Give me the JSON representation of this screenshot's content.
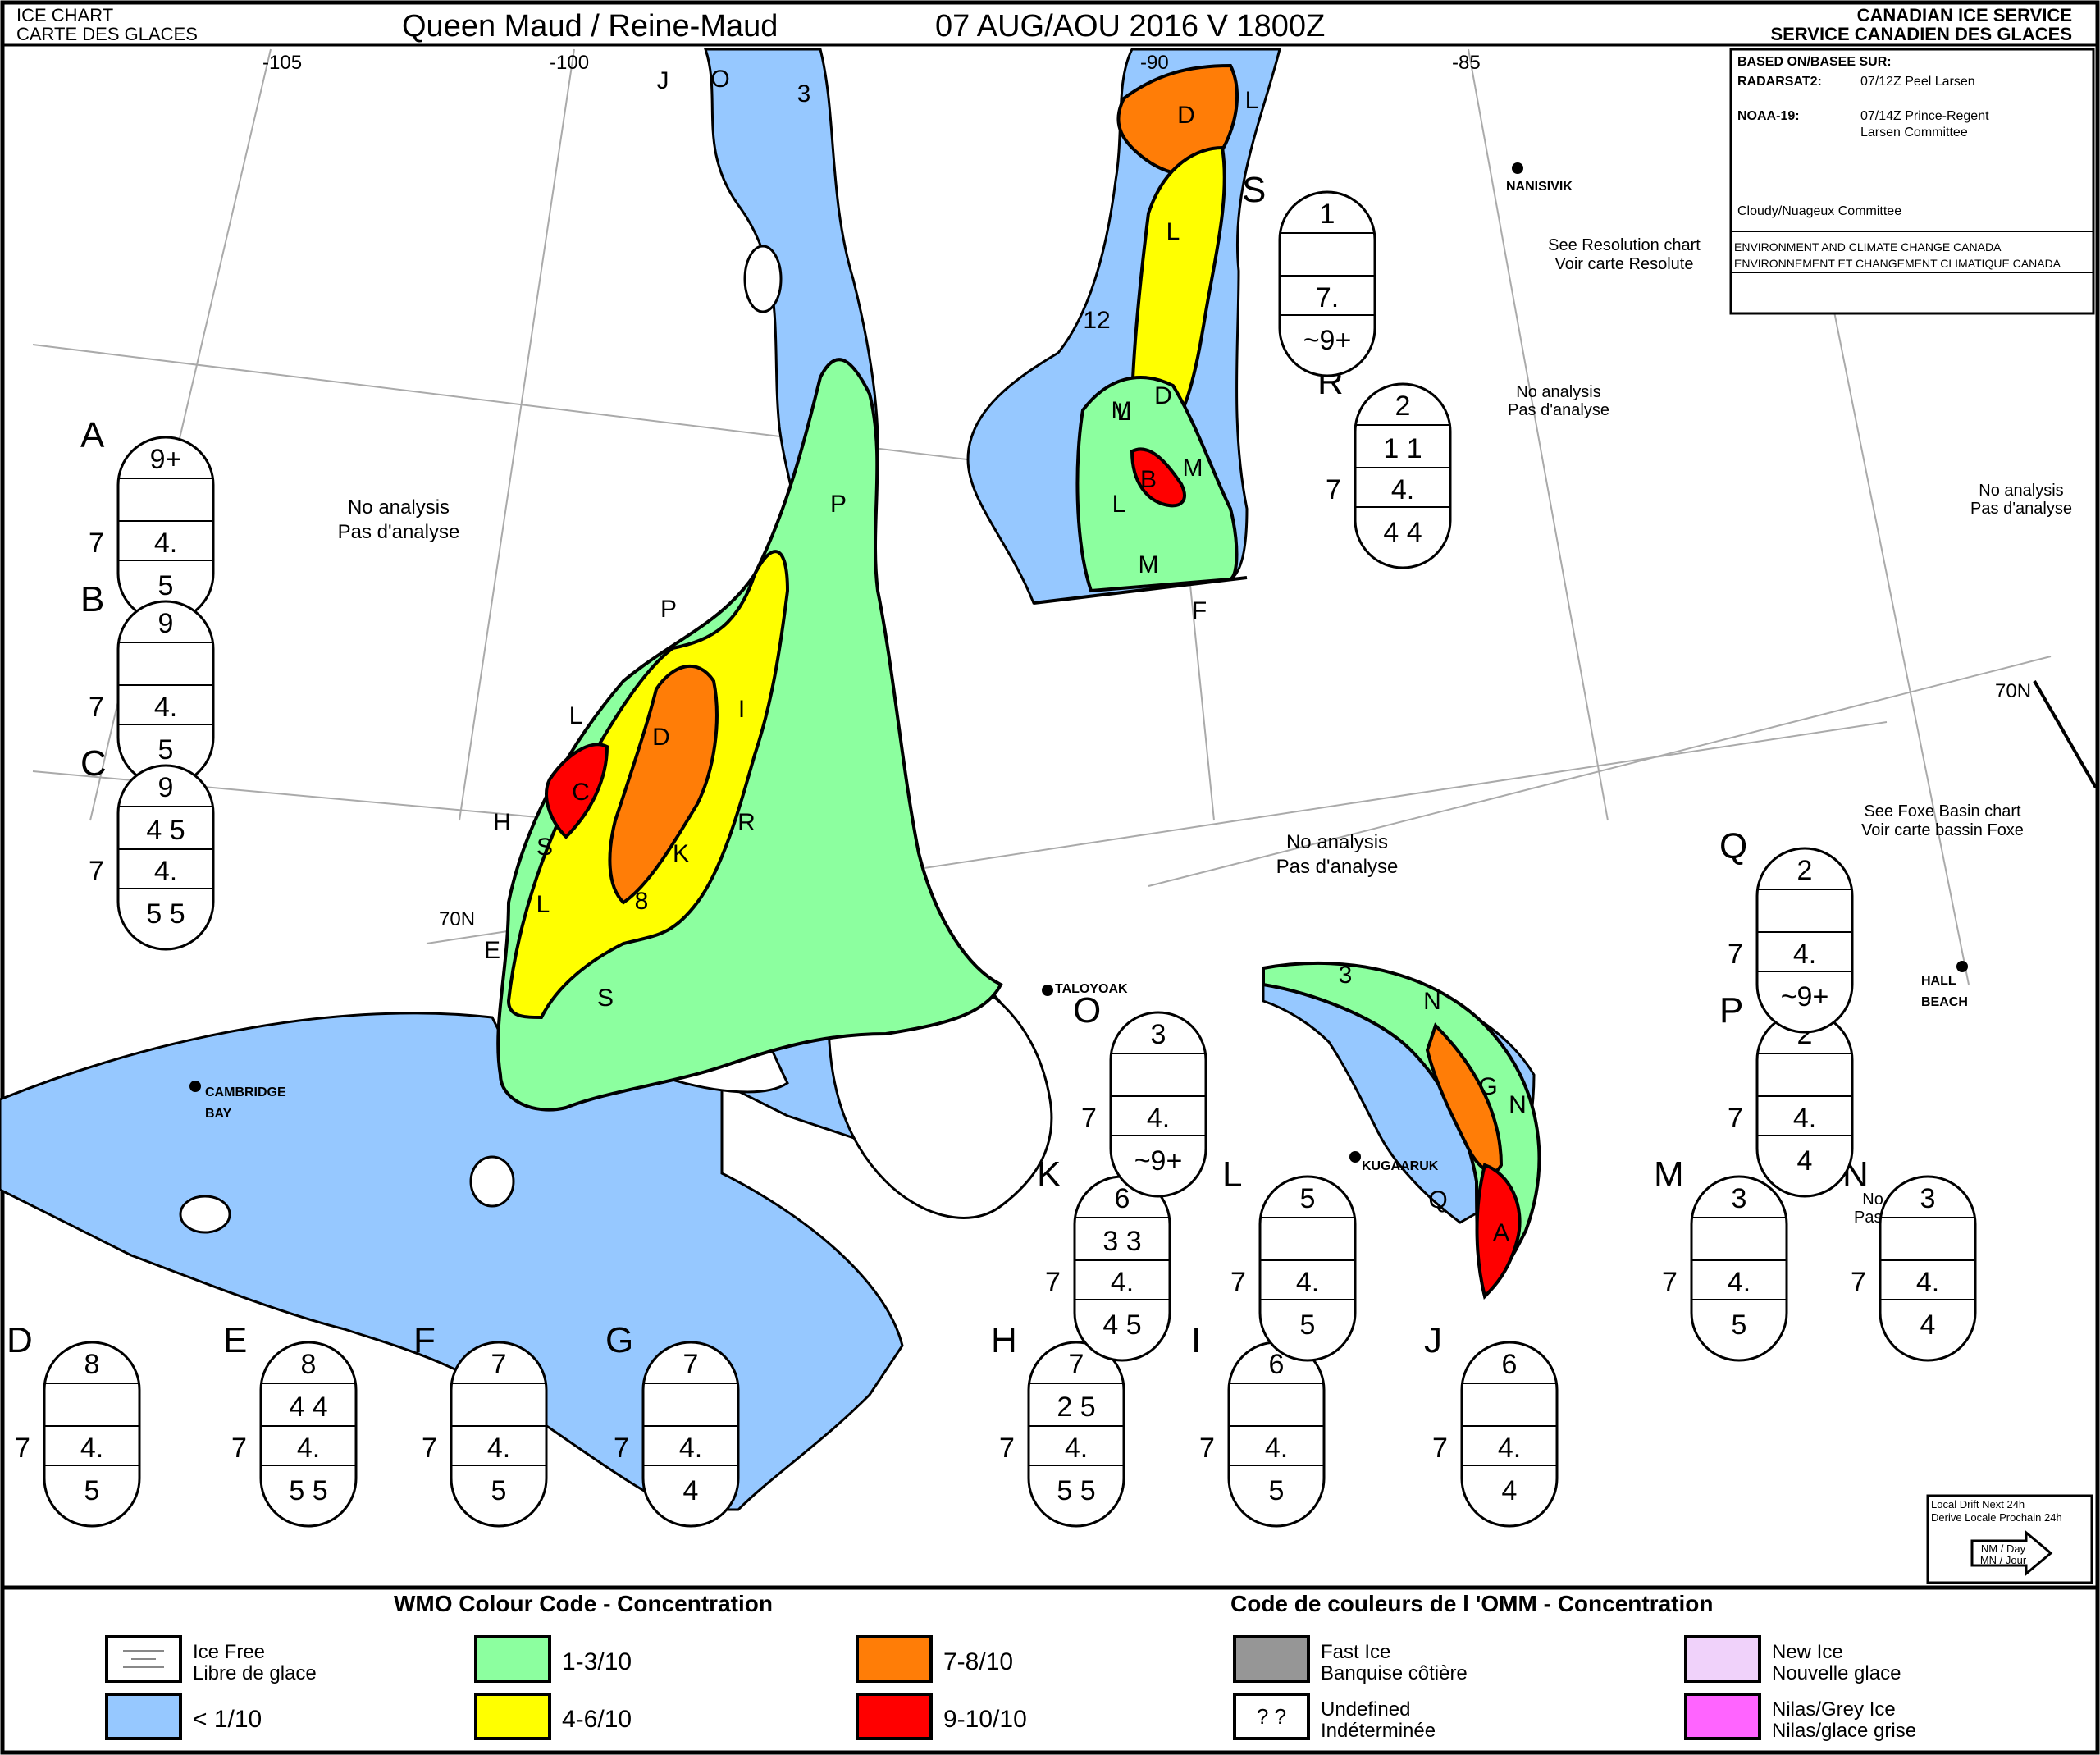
{
  "header": {
    "chart_label_en": "ICE CHART",
    "chart_label_fr": "CARTE DES GLACES",
    "title": "Queen Maud / Reine-Maud",
    "date": "07 AUG/AOU 2016  V 1800Z",
    "agency_en": "CANADIAN ICE SERVICE",
    "agency_fr": "SERVICE CANADIEN DES GLACES"
  },
  "info_box": {
    "based_on": "BASED ON/BASEE SUR:",
    "sources": [
      {
        "sensor": "RADARSAT2:",
        "detail1": "07/12Z Peel Larsen",
        "detail2": ""
      },
      {
        "sensor": "NOAA-19:",
        "detail1": "07/14Z Prince-Regent",
        "detail2": "Larsen Committee"
      }
    ],
    "cloudy": "Cloudy/Nuageux Committee",
    "env_en": "ENVIRONMENT AND CLIMATE CHANGE CANADA",
    "env_fr": "ENVIRONNEMENT ET CHANGEMENT CLIMATIQUE CANADA"
  },
  "longitudes": [
    "-105",
    "-100",
    "-90",
    "-85"
  ],
  "latitudes": [
    "70N",
    "70N"
  ],
  "places": [
    "NANISIVIK",
    "TALOYOAK",
    "CAMBRIDGE",
    "BAY",
    "KUGAARUK",
    "HALL",
    "BEACH"
  ],
  "notes": [
    {
      "line1": "No analysis",
      "line2": "Pas d'analyse"
    },
    {
      "line1": "No analysis",
      "line2": "Pas d'analyse"
    },
    {
      "line1": "No analysis",
      "line2": "Pas d'analyse"
    },
    {
      "line1": "No analysis",
      "line2": "Pas d'analyse"
    },
    {
      "line1": "No analysis",
      "line2": "Pas d'analyse"
    },
    {
      "line1": "See Resolution chart",
      "line2": "Voir carte Resolute"
    },
    {
      "line1": "See Foxe Basin chart",
      "line2": "Voir carte bassin Foxe"
    }
  ],
  "region_labels": [
    "J",
    "O",
    "3",
    "D",
    "L",
    "L",
    "L",
    "12",
    "M",
    "D",
    "B",
    "M",
    "L",
    "M",
    "F",
    "P",
    "P",
    "I",
    "D",
    "L",
    "C",
    "H",
    "S",
    "K",
    "R",
    "L",
    "8",
    "E",
    "S",
    "3",
    "N",
    "G",
    "N",
    "Q",
    "A"
  ],
  "egg_codes": [
    {
      "id": "A",
      "total": "9+",
      "p1": "",
      "p2": "",
      "s1": "7",
      "s2": "4.",
      "f": "5"
    },
    {
      "id": "B",
      "total": "9",
      "p1": "",
      "p2": "",
      "s1": "7",
      "s2": "4.",
      "f": "5"
    },
    {
      "id": "C",
      "total": "9",
      "p1": "4",
      "p2": "5",
      "s1": "7",
      "s2": "4.",
      "f": "5  5"
    },
    {
      "id": "D",
      "total": "8",
      "p1": "",
      "p2": "",
      "s1": "7",
      "s2": "4.",
      "f": "5"
    },
    {
      "id": "E",
      "total": "8",
      "p1": "4",
      "p2": "4",
      "s1": "7",
      "s2": "4.",
      "f": "5  5"
    },
    {
      "id": "F",
      "total": "7",
      "p1": "",
      "p2": "",
      "s1": "7",
      "s2": "4.",
      "f": "5"
    },
    {
      "id": "G",
      "total": "7",
      "p1": "",
      "p2": "",
      "s1": "7",
      "s2": "4.",
      "f": "4"
    },
    {
      "id": "H",
      "total": "7",
      "p1": "2",
      "p2": "5",
      "s1": "7",
      "s2": "4.",
      "f": "5  5"
    },
    {
      "id": "I",
      "total": "6",
      "p1": "",
      "p2": "",
      "s1": "7",
      "s2": "4.",
      "f": "5"
    },
    {
      "id": "J",
      "total": "6",
      "p1": "",
      "p2": "",
      "s1": "7",
      "s2": "4.",
      "f": "4"
    },
    {
      "id": "K",
      "total": "6",
      "p1": "3",
      "p2": "3",
      "s1": "7",
      "s2": "4.",
      "f": "4  5"
    },
    {
      "id": "L",
      "total": "5",
      "p1": "",
      "p2": "",
      "s1": "7",
      "s2": "4.",
      "f": "5"
    },
    {
      "id": "M",
      "total": "3",
      "p1": "",
      "p2": "",
      "s1": "7",
      "s2": "4.",
      "f": "5"
    },
    {
      "id": "N",
      "total": "3",
      "p1": "",
      "p2": "",
      "s1": "7",
      "s2": "4.",
      "f": "4"
    },
    {
      "id": "O",
      "total": "3",
      "p1": "",
      "p2": "",
      "s1": "7",
      "s2": "4.",
      "f": "~9+"
    },
    {
      "id": "P",
      "total": "2",
      "p1": "",
      "p2": "",
      "s1": "7",
      "s2": "4.",
      "f": "4"
    },
    {
      "id": "Q",
      "total": "2",
      "p1": "",
      "p2": "",
      "s1": "7",
      "s2": "4.",
      "f": "~9+"
    },
    {
      "id": "R",
      "total": "2",
      "p1": "1",
      "p2": "1",
      "s1": "7",
      "s2": "4.",
      "f": "4  4"
    },
    {
      "id": "S",
      "total": "1",
      "p1": "",
      "p2": "",
      "s1": "",
      "s2": "7.",
      "f": "~9+"
    }
  ],
  "drift": {
    "line1": "Local Drift Next 24h",
    "line2": "Derive Locale Prochain 24h",
    "unit1": "NM / Day",
    "unit2": "MN / Jour"
  },
  "legend": {
    "title_en": "WMO Colour Code - Concentration",
    "title_fr": "Code de couleurs de l 'OMM - Concentration",
    "items": [
      {
        "label1": "Ice Free",
        "label2": "Libre de glace",
        "color": "#ffffff"
      },
      {
        "label1": "< 1/10",
        "label2": "",
        "color": "#96c8ff"
      },
      {
        "label1": "1-3/10",
        "label2": "",
        "color": "#8cff9f"
      },
      {
        "label1": "4-6/10",
        "label2": "",
        "color": "#ffff00"
      },
      {
        "label1": "7-8/10",
        "label2": "",
        "color": "#ff7d07"
      },
      {
        "label1": "9-10/10",
        "label2": "",
        "color": "#ff0000"
      },
      {
        "label1": "Fast Ice",
        "label2": "Banquise côtière",
        "color": "#969696"
      },
      {
        "label1": "Undefined",
        "label2": "Indéterminée",
        "color": "#ffffff",
        "symbol": "? ?"
      },
      {
        "label1": "New Ice",
        "label2": "Nouvelle glace",
        "color": "#f0d2fa"
      },
      {
        "label1": "Nilas/Grey Ice",
        "label2": "Nilas/glace grise",
        "color": "#ff64ff"
      }
    ]
  },
  "colors": {
    "water": "#96c8ff",
    "green": "#8cff9f",
    "yellow": "#ffff00",
    "orange": "#ff7d07",
    "red": "#ff0000"
  }
}
